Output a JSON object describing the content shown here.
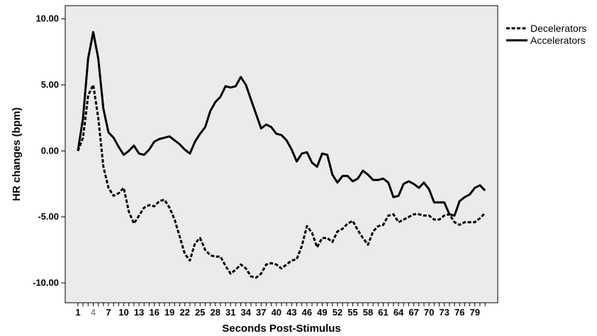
{
  "chart_data": {
    "type": "line",
    "xlabel": "Seconds Post-Stimulus",
    "ylabel": "HR changes (bpm)",
    "ylim": [
      -11.5,
      11
    ],
    "xlim": [
      -1.5,
      83.5
    ],
    "grid": false,
    "legend": "right",
    "x_tick_labels": [
      "1",
      "4",
      "7",
      "10",
      "13",
      "16",
      "19",
      "22",
      "25",
      "28",
      "31",
      "34",
      "37",
      "40",
      "43",
      "46",
      "49",
      "52",
      "55",
      "58",
      "61",
      "64",
      "67",
      "70",
      "73",
      "76",
      "79"
    ],
    "highlighted_x_tick": "4",
    "y_ticks": [
      10,
      5,
      0,
      -5,
      -10
    ],
    "y_tick_labels": [
      "10.00",
      "5.00",
      "0.00",
      "-5.00",
      "-10.00"
    ],
    "background": "#ebebeb",
    "line_color": "#000000",
    "series": [
      {
        "name": "Decelerators",
        "style": "dashed",
        "x": [
          1,
          2,
          3,
          4,
          5,
          6,
          7,
          8,
          9,
          10,
          11,
          12,
          13,
          14,
          15,
          16,
          17,
          18,
          19,
          20,
          21,
          22,
          23,
          24,
          25,
          26,
          27,
          28,
          29,
          30,
          31,
          32,
          33,
          34,
          35,
          36,
          37,
          38,
          39,
          40,
          41,
          42,
          43,
          44,
          45,
          46,
          47,
          48,
          49,
          50,
          51,
          52,
          53,
          54,
          55,
          56,
          57,
          58,
          59,
          60,
          61,
          62,
          63,
          64,
          65,
          66,
          67,
          68,
          69,
          70,
          71,
          72,
          73,
          74,
          75,
          76,
          77,
          78,
          79,
          80,
          81
        ],
        "y": [
          0.0,
          1.0,
          4.2,
          5.0,
          2.5,
          -1.2,
          -2.8,
          -3.4,
          -3.2,
          -2.8,
          -4.6,
          -5.5,
          -4.9,
          -4.3,
          -4.1,
          -4.2,
          -3.8,
          -3.7,
          -4.3,
          -5.2,
          -6.5,
          -7.8,
          -8.3,
          -7.0,
          -6.6,
          -7.5,
          -7.9,
          -8.0,
          -8.0,
          -8.7,
          -9.3,
          -9.0,
          -8.6,
          -8.9,
          -9.5,
          -9.6,
          -9.3,
          -8.6,
          -8.5,
          -8.6,
          -8.9,
          -8.6,
          -8.3,
          -8.2,
          -7.2,
          -5.7,
          -6.2,
          -7.3,
          -6.6,
          -6.6,
          -6.9,
          -6.1,
          -5.9,
          -5.5,
          -5.3,
          -6.0,
          -6.6,
          -7.1,
          -6.1,
          -5.7,
          -5.6,
          -4.9,
          -4.8,
          -5.4,
          -5.2,
          -5.0,
          -4.8,
          -4.8,
          -4.9,
          -4.9,
          -5.2,
          -5.2,
          -4.9,
          -4.8,
          -5.4,
          -5.6,
          -5.4,
          -5.4,
          -5.4,
          -5.1,
          -4.7
        ]
      },
      {
        "name": "Accelerators",
        "style": "solid",
        "x": [
          1,
          2,
          3,
          4,
          5,
          6,
          7,
          8,
          9,
          10,
          11,
          12,
          13,
          14,
          15,
          16,
          17,
          18,
          19,
          20,
          21,
          22,
          23,
          24,
          25,
          26,
          27,
          28,
          29,
          30,
          31,
          32,
          33,
          34,
          35,
          36,
          37,
          38,
          39,
          40,
          41,
          42,
          43,
          44,
          45,
          46,
          47,
          48,
          49,
          50,
          51,
          52,
          53,
          54,
          55,
          56,
          57,
          58,
          59,
          60,
          61,
          62,
          63,
          64,
          65,
          66,
          67,
          68,
          69,
          70,
          71,
          72,
          73,
          74,
          75,
          76,
          77,
          78,
          79,
          80,
          81
        ],
        "y": [
          0.0,
          2.5,
          7.0,
          9.0,
          7.0,
          3.2,
          1.4,
          1.0,
          0.3,
          -0.3,
          0.0,
          0.4,
          -0.2,
          -0.3,
          0.1,
          0.7,
          0.9,
          1.0,
          1.1,
          0.8,
          0.5,
          0.1,
          -0.2,
          0.7,
          1.3,
          1.8,
          3.0,
          3.7,
          4.1,
          4.9,
          4.8,
          4.9,
          5.6,
          5.0,
          3.9,
          2.8,
          1.7,
          2.0,
          1.8,
          1.3,
          1.2,
          0.8,
          0.1,
          -0.8,
          -0.2,
          -0.1,
          -0.9,
          -1.2,
          -0.2,
          -0.3,
          -1.8,
          -2.4,
          -1.9,
          -1.9,
          -2.3,
          -2.1,
          -1.5,
          -1.8,
          -2.2,
          -2.2,
          -2.1,
          -2.4,
          -3.5,
          -3.4,
          -2.5,
          -2.3,
          -2.5,
          -2.8,
          -2.4,
          -2.9,
          -3.9,
          -3.9,
          -3.9,
          -4.8,
          -4.9,
          -3.8,
          -3.5,
          -3.3,
          -2.8,
          -2.6,
          -3.0
        ]
      }
    ]
  }
}
